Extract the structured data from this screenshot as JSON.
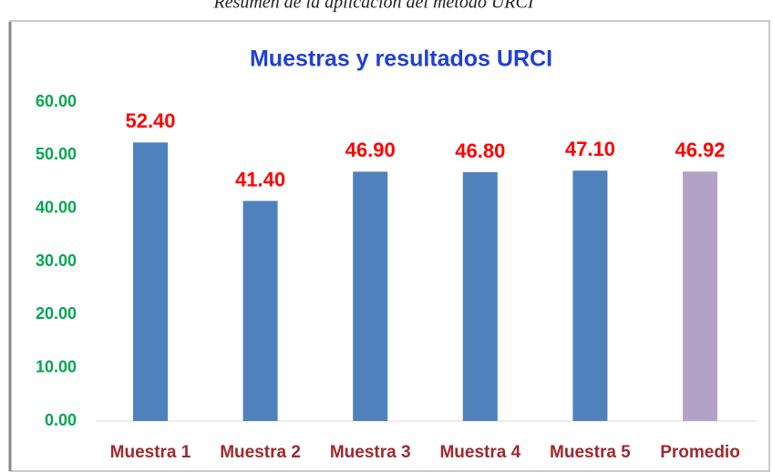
{
  "caption": "Resumen de la aplicación del método URCI",
  "chart_data": {
    "type": "bar",
    "title": "Muestras y resultados URCI",
    "categories": [
      "Muestra 1",
      "Muestra 2",
      "Muestra 3",
      "Muestra 4",
      "Muestra 5",
      "Promedio"
    ],
    "values": [
      52.4,
      41.4,
      46.9,
      46.8,
      47.1,
      46.92
    ],
    "value_labels": [
      "52.40",
      "41.40",
      "46.90",
      "46.80",
      "47.10",
      "46.92"
    ],
    "colors": [
      "#4f81bd",
      "#4f81bd",
      "#4f81bd",
      "#4f81bd",
      "#4f81bd",
      "#b3a2c7"
    ],
    "ylim": [
      0,
      60
    ],
    "yticks": [
      {
        "value": 0,
        "label": "0.00"
      },
      {
        "value": 10,
        "label": "10.00"
      },
      {
        "value": 20,
        "label": "20.00"
      },
      {
        "value": 30,
        "label": "30.00"
      },
      {
        "value": 40,
        "label": "40.00"
      },
      {
        "value": 50,
        "label": "50.00"
      },
      {
        "value": 60,
        "label": "60.00"
      }
    ],
    "grid": false
  }
}
